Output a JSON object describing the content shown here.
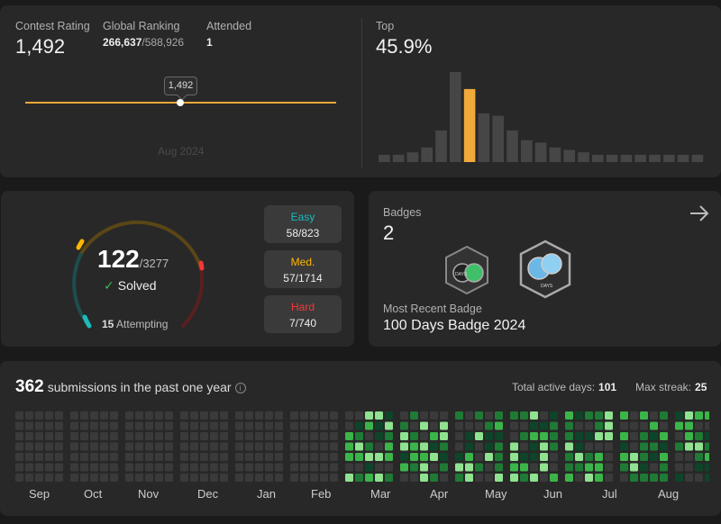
{
  "contest": {
    "rating_label": "Contest Rating",
    "rating_value": "1,492",
    "global_label": "Global Ranking",
    "global_rank": "266,637",
    "global_total": "/588,926",
    "attended_label": "Attended",
    "attended_value": "1",
    "tooltip": "1,492",
    "axis_date": "Aug 2024",
    "top_label": "Top",
    "top_value": "45.9%",
    "line_color": "#f0a93a",
    "histogram": [
      3,
      3,
      4,
      6,
      13,
      37,
      30,
      20,
      19,
      13,
      9,
      8,
      6,
      5,
      4,
      3,
      3,
      3,
      3,
      3,
      3,
      3,
      3
    ],
    "histogram_highlight_index": 6,
    "histogram_highlight_color": "#f0a93a"
  },
  "solved": {
    "count": "122",
    "total": "/3277",
    "label": "Solved",
    "attempting_count": "15",
    "attempting_label": "Attempting",
    "easy": {
      "label": "Easy",
      "value": "58/823",
      "color": "#1cbaba"
    },
    "medium": {
      "label": "Med.",
      "value": "57/1714",
      "color": "#ffb700"
    },
    "hard": {
      "label": "Hard",
      "value": "7/740",
      "color": "#f63737"
    }
  },
  "badges": {
    "label": "Badges",
    "count": "2",
    "badge1_text": "DAYS",
    "badge2_text": "DAYS",
    "recent_label": "Most Recent Badge",
    "recent_name": "100 Days Badge 2024",
    "arrow_icon": "arrow-right-icon"
  },
  "submissions": {
    "count": "362",
    "label": "submissions in the past one year",
    "active_label": "Total active days:",
    "active_value": "101",
    "streak_label": "Max streak:",
    "streak_value": "25",
    "months": [
      "Sep",
      "Oct",
      "Nov",
      "Dec",
      "Jan",
      "Feb",
      "Mar",
      "Apr",
      "May",
      "Jun",
      "Jul",
      "Aug"
    ]
  }
}
